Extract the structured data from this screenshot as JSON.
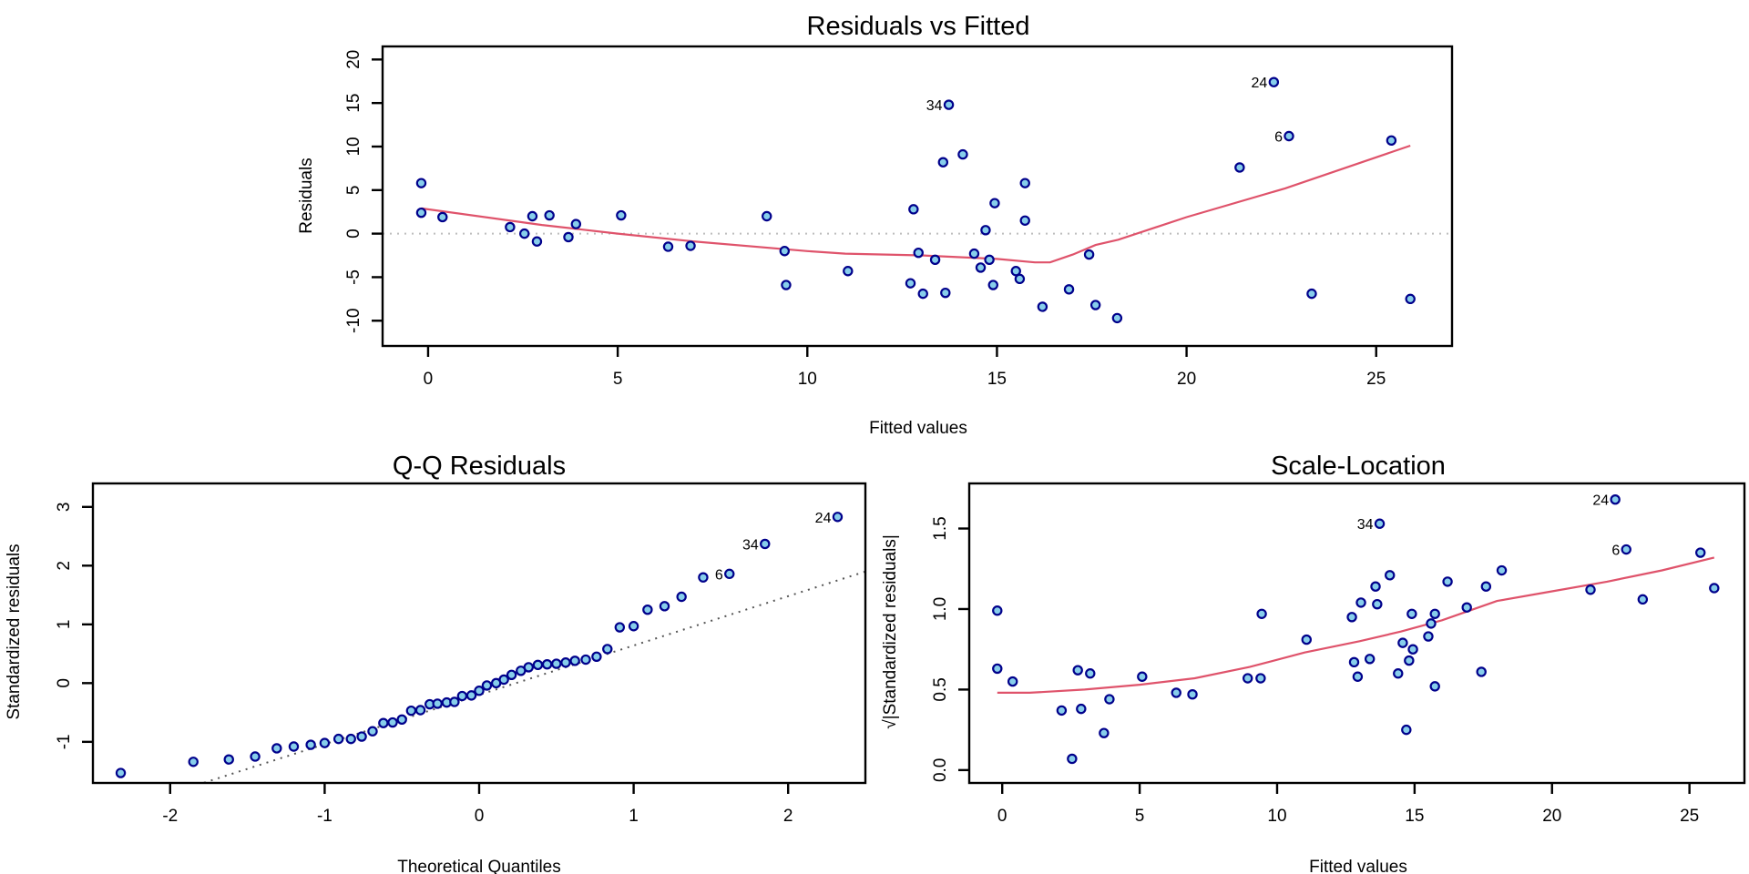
{
  "chart_data": [
    {
      "id": "residuals-vs-fitted",
      "type": "scatter",
      "title": "Residuals vs Fitted",
      "xlabel": "Fitted values",
      "ylabel": "Residuals",
      "xlim": [
        -1.2,
        27
      ],
      "ylim": [
        -12.9,
        21.5
      ],
      "xticks": [
        0,
        5,
        10,
        15,
        20,
        25
      ],
      "yticks": [
        -10,
        -5,
        0,
        5,
        10,
        15,
        20
      ],
      "reference_line": {
        "type": "horizontal",
        "y": 0,
        "style": "dotted",
        "color": "#BEBEBE"
      },
      "points": [
        {
          "x": -0.18,
          "y": 5.8
        },
        {
          "x": -0.18,
          "y": 2.4
        },
        {
          "x": 0.38,
          "y": 1.9
        },
        {
          "x": 2.16,
          "y": 0.75
        },
        {
          "x": 2.54,
          "y": 0.0
        },
        {
          "x": 2.75,
          "y": 2.0
        },
        {
          "x": 2.87,
          "y": -0.9
        },
        {
          "x": 3.2,
          "y": 2.1
        },
        {
          "x": 3.7,
          "y": -0.4
        },
        {
          "x": 3.9,
          "y": 1.1
        },
        {
          "x": 5.09,
          "y": 2.1
        },
        {
          "x": 6.33,
          "y": -1.5
        },
        {
          "x": 6.92,
          "y": -1.4
        },
        {
          "x": 8.93,
          "y": 2.0
        },
        {
          "x": 9.4,
          "y": -2.0
        },
        {
          "x": 9.44,
          "y": -5.9
        },
        {
          "x": 11.07,
          "y": -4.3
        },
        {
          "x": 12.72,
          "y": -5.7
        },
        {
          "x": 12.8,
          "y": 2.8
        },
        {
          "x": 12.93,
          "y": -2.2
        },
        {
          "x": 13.05,
          "y": -6.9
        },
        {
          "x": 13.37,
          "y": -3.0
        },
        {
          "x": 13.58,
          "y": 8.2
        },
        {
          "x": 13.64,
          "y": -6.8
        },
        {
          "x": 13.73,
          "y": 14.8,
          "label": "34"
        },
        {
          "x": 14.1,
          "y": 9.1
        },
        {
          "x": 14.4,
          "y": -2.3
        },
        {
          "x": 14.57,
          "y": -3.9
        },
        {
          "x": 14.7,
          "y": 0.4
        },
        {
          "x": 14.8,
          "y": -3.0
        },
        {
          "x": 14.9,
          "y": -5.9
        },
        {
          "x": 14.94,
          "y": 3.5
        },
        {
          "x": 15.5,
          "y": -4.3
        },
        {
          "x": 15.6,
          "y": -5.2
        },
        {
          "x": 15.74,
          "y": 1.5
        },
        {
          "x": 15.74,
          "y": 5.8
        },
        {
          "x": 16.2,
          "y": -8.4
        },
        {
          "x": 16.9,
          "y": -6.4
        },
        {
          "x": 17.43,
          "y": -2.4
        },
        {
          "x": 17.6,
          "y": -8.2
        },
        {
          "x": 18.17,
          "y": -9.7
        },
        {
          "x": 21.4,
          "y": 7.6
        },
        {
          "x": 22.3,
          "y": 17.4,
          "label": "24"
        },
        {
          "x": 22.7,
          "y": 11.2,
          "label": "6"
        },
        {
          "x": 23.3,
          "y": -6.9
        },
        {
          "x": 25.4,
          "y": 10.7
        },
        {
          "x": 25.9,
          "y": -7.5
        }
      ],
      "smooth_line": [
        {
          "x": -0.18,
          "y": 2.9
        },
        {
          "x": 3.0,
          "y": 1.0
        },
        {
          "x": 5.0,
          "y": 0.0
        },
        {
          "x": 7.0,
          "y": -0.9
        },
        {
          "x": 10.0,
          "y": -2.0
        },
        {
          "x": 11.0,
          "y": -2.3
        },
        {
          "x": 13.0,
          "y": -2.5
        },
        {
          "x": 15.0,
          "y": -2.9
        },
        {
          "x": 16.0,
          "y": -3.3
        },
        {
          "x": 16.4,
          "y": -3.3
        },
        {
          "x": 17.0,
          "y": -2.4
        },
        {
          "x": 17.6,
          "y": -1.3
        },
        {
          "x": 18.2,
          "y": -0.7
        },
        {
          "x": 20.0,
          "y": 1.9
        },
        {
          "x": 22.6,
          "y": 5.2
        },
        {
          "x": 25.9,
          "y": 10.1
        }
      ]
    },
    {
      "id": "qq-residuals",
      "type": "scatter",
      "title": "Q-Q Residuals",
      "xlabel": "Theoretical Quantiles",
      "ylabel": "Standardized residuals",
      "xlim": [
        -2.5,
        2.5
      ],
      "ylim": [
        -1.7,
        3.4
      ],
      "xticks": [
        -2,
        -1,
        0,
        1,
        2
      ],
      "yticks": [
        -1,
        0,
        1,
        2,
        3
      ],
      "reference_line": {
        "type": "line",
        "x1": -2.5,
        "y1": -2.3,
        "x2": 2.5,
        "y2": 1.9,
        "style": "dotted",
        "color": "#555555"
      },
      "points": [
        {
          "x": -2.32,
          "y": -1.53
        },
        {
          "x": -1.85,
          "y": -1.34
        },
        {
          "x": -1.62,
          "y": -1.3
        },
        {
          "x": -1.45,
          "y": -1.25
        },
        {
          "x": -1.31,
          "y": -1.11
        },
        {
          "x": -1.2,
          "y": -1.08
        },
        {
          "x": -1.09,
          "y": -1.05
        },
        {
          "x": -1.0,
          "y": -1.02
        },
        {
          "x": -0.91,
          "y": -0.95
        },
        {
          "x": -0.83,
          "y": -0.95
        },
        {
          "x": -0.76,
          "y": -0.91
        },
        {
          "x": -0.69,
          "y": -0.82
        },
        {
          "x": -0.62,
          "y": -0.68
        },
        {
          "x": -0.56,
          "y": -0.67
        },
        {
          "x": -0.5,
          "y": -0.62
        },
        {
          "x": -0.44,
          "y": -0.47
        },
        {
          "x": -0.38,
          "y": -0.46
        },
        {
          "x": -0.32,
          "y": -0.36
        },
        {
          "x": -0.27,
          "y": -0.35
        },
        {
          "x": -0.21,
          "y": -0.33
        },
        {
          "x": -0.16,
          "y": -0.32
        },
        {
          "x": -0.11,
          "y": -0.22
        },
        {
          "x": -0.05,
          "y": -0.21
        },
        {
          "x": 0.0,
          "y": -0.13
        },
        {
          "x": 0.05,
          "y": -0.04
        },
        {
          "x": 0.11,
          "y": 0.0
        },
        {
          "x": 0.16,
          "y": 0.06
        },
        {
          "x": 0.21,
          "y": 0.14
        },
        {
          "x": 0.27,
          "y": 0.21
        },
        {
          "x": 0.32,
          "y": 0.27
        },
        {
          "x": 0.38,
          "y": 0.31
        },
        {
          "x": 0.44,
          "y": 0.32
        },
        {
          "x": 0.5,
          "y": 0.33
        },
        {
          "x": 0.56,
          "y": 0.35
        },
        {
          "x": 0.62,
          "y": 0.38
        },
        {
          "x": 0.69,
          "y": 0.4
        },
        {
          "x": 0.76,
          "y": 0.45
        },
        {
          "x": 0.83,
          "y": 0.58
        },
        {
          "x": 0.91,
          "y": 0.95
        },
        {
          "x": 1.0,
          "y": 0.97
        },
        {
          "x": 1.09,
          "y": 1.25
        },
        {
          "x": 1.2,
          "y": 1.31
        },
        {
          "x": 1.31,
          "y": 1.47
        },
        {
          "x": 1.45,
          "y": 1.8
        },
        {
          "x": 1.62,
          "y": 1.86,
          "label": "6"
        },
        {
          "x": 1.85,
          "y": 2.37,
          "label": "34"
        },
        {
          "x": 2.32,
          "y": 2.83,
          "label": "24"
        }
      ]
    },
    {
      "id": "scale-location",
      "type": "scatter",
      "title": "Scale-Location",
      "xlabel": "Fitted values",
      "ylabel": "√|Standardized residuals|",
      "xlim": [
        -1.2,
        27
      ],
      "ylim": [
        -0.08,
        1.78
      ],
      "xticks": [
        0,
        5,
        10,
        15,
        20,
        25
      ],
      "yticks": [
        0.0,
        0.5,
        1.0,
        1.5
      ],
      "ytick_labels": [
        "0.0",
        "0.5",
        "1.0",
        "1.5"
      ],
      "points": [
        {
          "x": -0.18,
          "y": 0.99
        },
        {
          "x": -0.18,
          "y": 0.63
        },
        {
          "x": 0.38,
          "y": 0.55
        },
        {
          "x": 2.16,
          "y": 0.37
        },
        {
          "x": 2.54,
          "y": 0.07
        },
        {
          "x": 2.75,
          "y": 0.62
        },
        {
          "x": 2.87,
          "y": 0.38
        },
        {
          "x": 3.2,
          "y": 0.6
        },
        {
          "x": 3.7,
          "y": 0.23
        },
        {
          "x": 3.9,
          "y": 0.44
        },
        {
          "x": 5.09,
          "y": 0.58
        },
        {
          "x": 6.33,
          "y": 0.48
        },
        {
          "x": 6.92,
          "y": 0.47
        },
        {
          "x": 8.93,
          "y": 0.57
        },
        {
          "x": 9.4,
          "y": 0.57
        },
        {
          "x": 9.44,
          "y": 0.97
        },
        {
          "x": 11.07,
          "y": 0.81
        },
        {
          "x": 12.72,
          "y": 0.95
        },
        {
          "x": 12.8,
          "y": 0.67
        },
        {
          "x": 12.93,
          "y": 0.58
        },
        {
          "x": 13.05,
          "y": 1.04
        },
        {
          "x": 13.37,
          "y": 0.69
        },
        {
          "x": 13.58,
          "y": 1.14
        },
        {
          "x": 13.64,
          "y": 1.03
        },
        {
          "x": 13.73,
          "y": 1.53,
          "label": "34"
        },
        {
          "x": 14.1,
          "y": 1.21
        },
        {
          "x": 14.4,
          "y": 0.6
        },
        {
          "x": 14.57,
          "y": 0.79
        },
        {
          "x": 14.7,
          "y": 0.25
        },
        {
          "x": 14.8,
          "y": 0.68
        },
        {
          "x": 14.9,
          "y": 0.97
        },
        {
          "x": 14.94,
          "y": 0.75
        },
        {
          "x": 15.5,
          "y": 0.83
        },
        {
          "x": 15.6,
          "y": 0.91
        },
        {
          "x": 15.74,
          "y": 0.52
        },
        {
          "x": 15.74,
          "y": 0.97
        },
        {
          "x": 16.2,
          "y": 1.17
        },
        {
          "x": 16.9,
          "y": 1.01
        },
        {
          "x": 17.43,
          "y": 0.61
        },
        {
          "x": 17.6,
          "y": 1.14
        },
        {
          "x": 18.17,
          "y": 1.24
        },
        {
          "x": 21.4,
          "y": 1.12
        },
        {
          "x": 22.3,
          "y": 1.68,
          "label": "24"
        },
        {
          "x": 22.7,
          "y": 1.37,
          "label": "6"
        },
        {
          "x": 23.3,
          "y": 1.06
        },
        {
          "x": 25.4,
          "y": 1.35
        },
        {
          "x": 25.9,
          "y": 1.13
        }
      ],
      "smooth_line": [
        {
          "x": -0.18,
          "y": 0.48
        },
        {
          "x": 1.0,
          "y": 0.48
        },
        {
          "x": 3.0,
          "y": 0.5
        },
        {
          "x": 5.0,
          "y": 0.53
        },
        {
          "x": 7.0,
          "y": 0.57
        },
        {
          "x": 9.0,
          "y": 0.64
        },
        {
          "x": 11.0,
          "y": 0.73
        },
        {
          "x": 13.0,
          "y": 0.8
        },
        {
          "x": 14.5,
          "y": 0.86
        },
        {
          "x": 16.0,
          "y": 0.93
        },
        {
          "x": 17.0,
          "y": 0.99
        },
        {
          "x": 18.0,
          "y": 1.05
        },
        {
          "x": 20.0,
          "y": 1.11
        },
        {
          "x": 22.0,
          "y": 1.17
        },
        {
          "x": 24.0,
          "y": 1.24
        },
        {
          "x": 25.9,
          "y": 1.32
        }
      ]
    }
  ]
}
